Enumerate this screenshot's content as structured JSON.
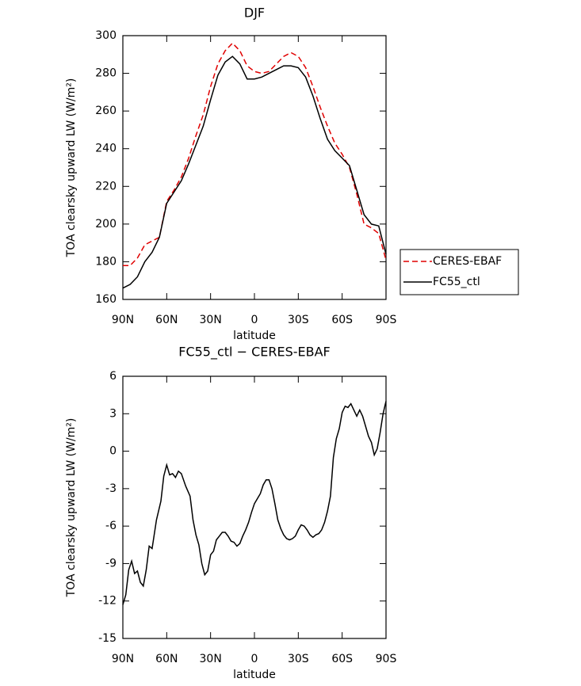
{
  "chart_data": [
    {
      "type": "line",
      "title": "DJF",
      "xlabel": "latitude",
      "ylabel": "TOA clearsky upward LW (W/m²)",
      "x": [
        90,
        85,
        80,
        75,
        70,
        65,
        60,
        55,
        50,
        45,
        40,
        35,
        30,
        25,
        20,
        15,
        10,
        5,
        0,
        -5,
        -10,
        -15,
        -20,
        -25,
        -30,
        -35,
        -40,
        -45,
        -50,
        -55,
        -60,
        -65,
        -70,
        -75,
        -80,
        -85,
        -90
      ],
      "series": [
        {
          "name": "CERES-EBAF",
          "color": "#e00000",
          "linestyle": "dashed",
          "values": [
            178,
            178,
            182,
            189,
            191,
            193,
            212,
            218,
            225,
            235,
            247,
            258,
            273,
            285,
            292,
            296,
            292,
            284,
            281,
            280,
            281,
            285,
            289,
            291,
            289,
            283,
            273,
            262,
            252,
            243,
            237,
            230,
            216,
            200,
            198,
            195,
            181
          ]
        },
        {
          "name": "FC55_ctl",
          "color": "#000000",
          "linestyle": "solid",
          "values": [
            166,
            168,
            172,
            180,
            185,
            193,
            211,
            217,
            223,
            232,
            242,
            252,
            266,
            279,
            286,
            289,
            285,
            277,
            277,
            278,
            280,
            282,
            284,
            284,
            283,
            278,
            268,
            256,
            245,
            239,
            235,
            231,
            218,
            205,
            200,
            199,
            184
          ]
        }
      ],
      "xlim": [
        90,
        -90
      ],
      "xticks": [
        {
          "value": 90,
          "label": "90N"
        },
        {
          "value": 60,
          "label": "60N"
        },
        {
          "value": 30,
          "label": "30N"
        },
        0,
        {
          "value": -30,
          "label": "30S"
        },
        {
          "value": -60,
          "label": "60S"
        },
        {
          "value": -90,
          "label": "90S"
        }
      ],
      "ylim": [
        160,
        300
      ],
      "yticks": [
        160,
        180,
        200,
        220,
        240,
        260,
        280,
        300
      ],
      "legend": "right"
    },
    {
      "type": "line",
      "title": "FC55_ctl − CERES-EBAF",
      "xlabel": "latitude",
      "ylabel": "TOA clearsky upward LW (W/m²)",
      "x": [
        90,
        88,
        86,
        84,
        82,
        80,
        78,
        76,
        74,
        72,
        70,
        67,
        64,
        62,
        60,
        58,
        56,
        54,
        52,
        50,
        47,
        44,
        42,
        40,
        38,
        36,
        34,
        32,
        30,
        28,
        26,
        24,
        22,
        20,
        18,
        16,
        14,
        12,
        10,
        8,
        6,
        4,
        2,
        0,
        -2,
        -4,
        -6,
        -8,
        -10,
        -12,
        -14,
        -16,
        -18,
        -20,
        -22,
        -24,
        -26,
        -28,
        -30,
        -32,
        -34,
        -36,
        -38,
        -40,
        -42,
        -44,
        -46,
        -48,
        -50,
        -52,
        -54,
        -56,
        -58,
        -60,
        -62,
        -64,
        -66,
        -68,
        -70,
        -72,
        -74,
        -76,
        -78,
        -80,
        -82,
        -84,
        -86,
        -88,
        -90
      ],
      "series": [
        {
          "color": "#000000",
          "linestyle": "solid",
          "values": [
            -12.3,
            -11.5,
            -9.5,
            -8.8,
            -9.8,
            -9.6,
            -10.5,
            -10.8,
            -9.5,
            -7.6,
            -7.8,
            -5.5,
            -4,
            -2,
            -1.1,
            -1.9,
            -1.8,
            -2.1,
            -1.6,
            -1.8,
            -2.8,
            -3.6,
            -5.5,
            -6.7,
            -7.5,
            -9,
            -9.9,
            -9.6,
            -8.3,
            -8,
            -7.1,
            -6.8,
            -6.5,
            -6.5,
            -6.8,
            -7.2,
            -7.3,
            -7.6,
            -7.4,
            -6.8,
            -6.3,
            -5.7,
            -4.9,
            -4.2,
            -3.8,
            -3.4,
            -2.7,
            -2.3,
            -2.3,
            -3,
            -4.2,
            -5.5,
            -6.2,
            -6.7,
            -7,
            -7.1,
            -7,
            -6.8,
            -6.3,
            -5.9,
            -6,
            -6.3,
            -6.7,
            -6.9,
            -6.7,
            -6.6,
            -6.3,
            -5.7,
            -4.8,
            -3.6,
            -0.5,
            1,
            1.8,
            3.1,
            3.6,
            3.5,
            3.8,
            3.3,
            2.8,
            3.3,
            2.8,
            2,
            1.2,
            0.7,
            -0.3,
            0.2,
            1.5,
            3,
            4
          ]
        }
      ],
      "xlim": [
        90,
        -90
      ],
      "xticks": [
        {
          "value": 90,
          "label": "90N"
        },
        {
          "value": 60,
          "label": "60N"
        },
        {
          "value": 30,
          "label": "30N"
        },
        0,
        {
          "value": -30,
          "label": "30S"
        },
        {
          "value": -60,
          "label": "60S"
        },
        {
          "value": -90,
          "label": "90S"
        }
      ],
      "ylim": [
        -15,
        6
      ],
      "yticks": [
        -15,
        -12,
        -9,
        -6,
        -3,
        0,
        3,
        6
      ]
    }
  ]
}
